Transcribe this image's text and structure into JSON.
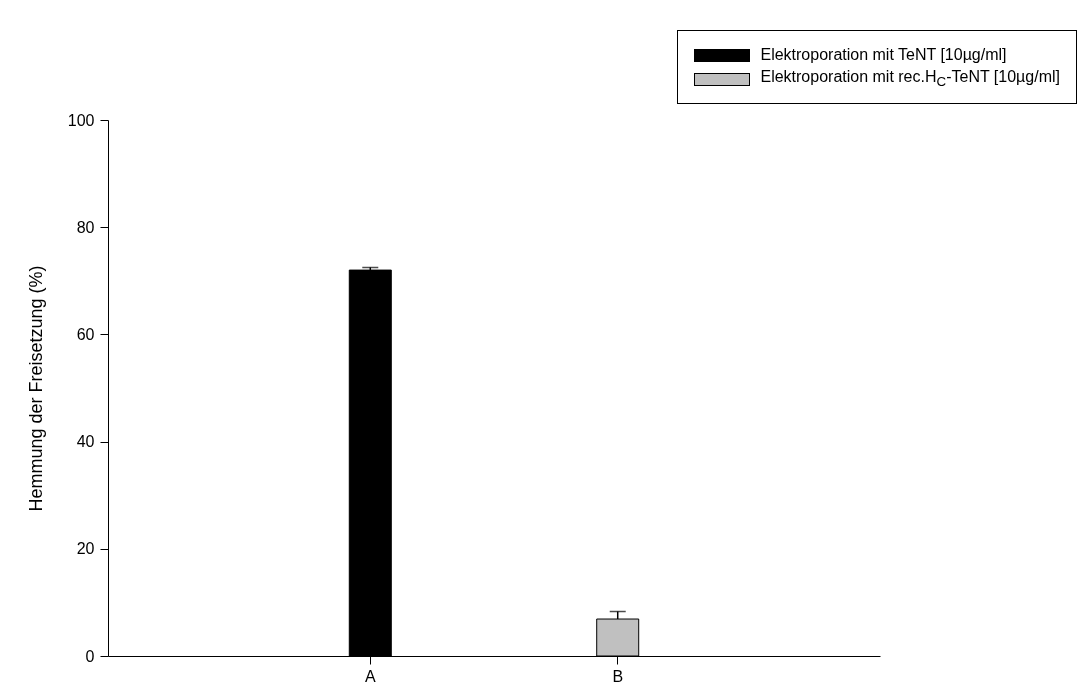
{
  "chart_data": {
    "type": "bar",
    "ylabel": "Hemmung der Freisetzung   (%)",
    "categories": [
      "A",
      "B"
    ],
    "series": [
      {
        "name": "Elektroporation mit TeNT [10µg/ml]",
        "color": "#000000",
        "values": [
          72.0,
          null
        ],
        "errors": [
          0.5,
          null
        ]
      },
      {
        "name": "Elektroporation mit rec.H$_{C}$-TeNT [10µg/ml]",
        "color": "#c0c0c0",
        "values": [
          null,
          6.9
        ],
        "errors": [
          null,
          1.4
        ]
      }
    ],
    "ylim": [
      0,
      100
    ],
    "yticks": [
      0,
      20,
      40,
      60,
      80,
      100
    ],
    "legend": "top right"
  }
}
